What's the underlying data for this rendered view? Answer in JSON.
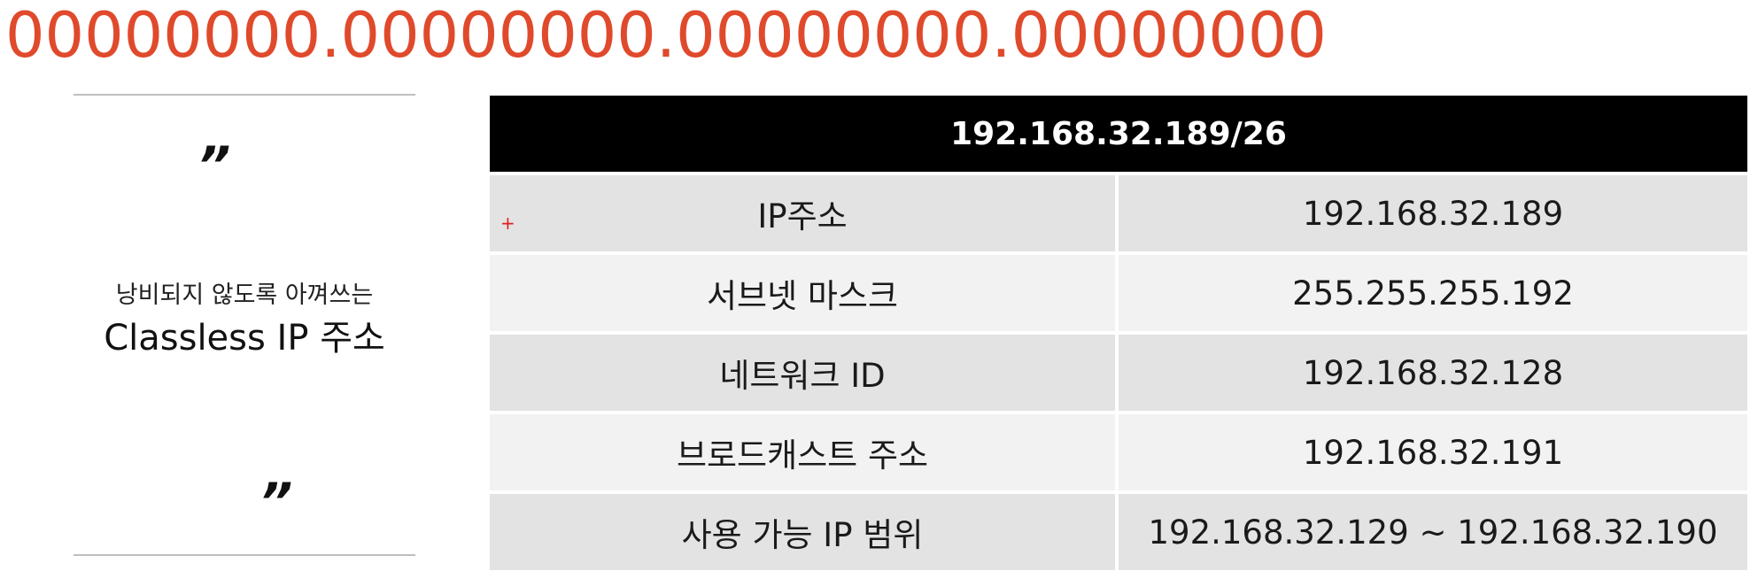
{
  "binary_mask": "00000000.00000000.00000000.00000000",
  "quote": {
    "open_mark": "”",
    "close_mark": "”",
    "subtitle": "낭비되지 않도록 아껴쓰는",
    "title": "Classless IP 주소"
  },
  "table": {
    "header": "192.168.32.189/26",
    "marker": "+",
    "rows": [
      {
        "label": "IP주소",
        "value": "192.168.32.189"
      },
      {
        "label": "서브넷 마스크",
        "value": "255.255.255.192"
      },
      {
        "label": "네트워크 ID",
        "value": "192.168.32.128"
      },
      {
        "label": "브로드캐스트 주소",
        "value": "192.168.32.191"
      },
      {
        "label": "사용 가능 IP 범위",
        "value": "192.168.32.129 ~ 192.168.32.190"
      }
    ]
  },
  "colors": {
    "accent_red": "#e04a2c",
    "header_bg": "#000000",
    "row_dark": "#e3e3e3",
    "row_light": "#f2f2f2"
  }
}
